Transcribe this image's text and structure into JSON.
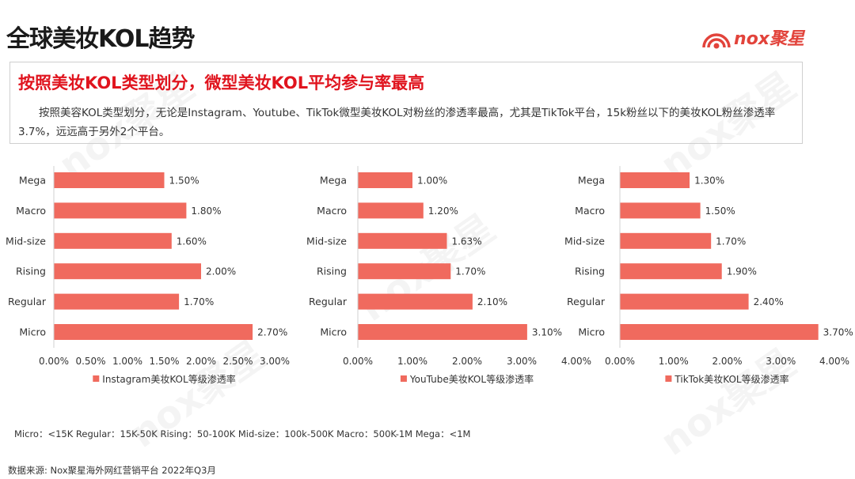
{
  "page": {
    "title": "全球美妆KOL趋势",
    "logo_text": "nox聚星",
    "headline": "按照美妆KOL类型划分，微型美妆KOL平均参与率最高",
    "description": "按照美容KOL类型划分，无论是Instagram、Youtube、TikTok微型美妆KOL对粉丝的渗透率最高，尤其是TikTok平台，15k粉丝以下的美妆KOL粉丝渗透率3.7%，远远高于另外2个平台。",
    "footnote": "Micro：<15K Regular：15K-50K Rising：50-100K Mid-size：100k-500K Macro：500K-1M Mega：<1M",
    "source": "数据来源: Nox聚星海外网红营销平台 2022年Q3月",
    "accent_color": "#f06a5e"
  },
  "chart_data": [
    {
      "type": "bar",
      "orientation": "horizontal",
      "categories": [
        "Mega",
        "Macro",
        "Mid-size",
        "Rising",
        "Regular",
        "Micro"
      ],
      "series": [
        {
          "name": "Instagram美妆KOL等级渗透率",
          "values": [
            1.5,
            1.8,
            1.6,
            2.0,
            1.7,
            2.7
          ]
        }
      ],
      "value_labels": [
        "1.50%",
        "1.80%",
        "1.60%",
        "2.00%",
        "1.70%",
        "2.70%"
      ],
      "xlim": [
        0,
        3.0
      ],
      "xticks": [
        "0.00%",
        "0.50%",
        "1.00%",
        "1.50%",
        "2.00%",
        "2.50%",
        "3.00%"
      ],
      "legend_position": "bottom",
      "grid": false
    },
    {
      "type": "bar",
      "orientation": "horizontal",
      "categories": [
        "Mega",
        "Macro",
        "Mid-size",
        "Rising",
        "Regular",
        "Micro"
      ],
      "series": [
        {
          "name": "YouTube美妆KOL等级渗透率",
          "values": [
            1.0,
            1.2,
            1.63,
            1.7,
            2.1,
            3.1
          ]
        }
      ],
      "value_labels": [
        "1.00%",
        "1.20%",
        "1.63%",
        "1.70%",
        "2.10%",
        "3.10%"
      ],
      "xlim": [
        0,
        4.0
      ],
      "xticks": [
        "0.00%",
        "1.00%",
        "2.00%",
        "3.00%",
        "4.00%"
      ],
      "legend_position": "bottom",
      "grid": false
    },
    {
      "type": "bar",
      "orientation": "horizontal",
      "categories": [
        "Mega",
        "Macro",
        "Mid-size",
        "Rising",
        "Regular",
        "Micro"
      ],
      "series": [
        {
          "name": "TikTok美妆KOL等级渗透率",
          "values": [
            1.3,
            1.5,
            1.7,
            1.9,
            2.4,
            3.7
          ]
        }
      ],
      "value_labels": [
        "1.30%",
        "1.50%",
        "1.70%",
        "1.90%",
        "2.40%",
        "3.70%"
      ],
      "xlim": [
        0,
        4.0
      ],
      "xticks": [
        "0.00%",
        "1.00%",
        "2.00%",
        "3.00%",
        "4.00%"
      ],
      "legend_position": "bottom",
      "grid": false
    }
  ]
}
